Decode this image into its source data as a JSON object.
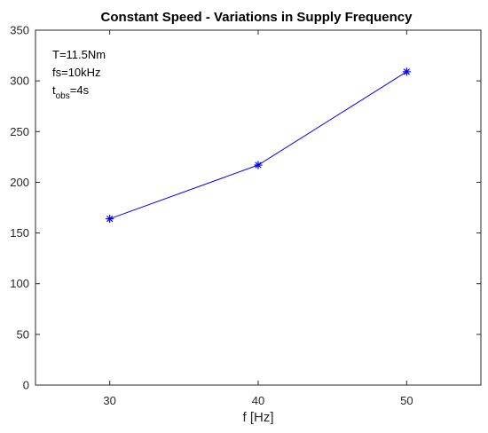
{
  "chart_data": {
    "type": "line",
    "title": "Constant Speed - Variations in Supply Frequency",
    "xlabel": "f [Hz]",
    "ylabel": "",
    "xlim": [
      25,
      55
    ],
    "ylim": [
      0,
      350
    ],
    "xticks": [
      30,
      40,
      50
    ],
    "yticks": [
      0,
      50,
      100,
      150,
      200,
      250,
      300,
      350
    ],
    "grid": false,
    "legend": "none",
    "series": [
      {
        "x": [
          30,
          40,
          50
        ],
        "values": [
          164,
          217,
          309
        ],
        "color": "#0000ff",
        "marker": "asterisk"
      }
    ],
    "annotations": {
      "torque": "T=11.5Nm",
      "sampling": "fs=10kHz",
      "t_main": "t",
      "t_sub": "obs",
      "t_rest": "=4s"
    }
  }
}
